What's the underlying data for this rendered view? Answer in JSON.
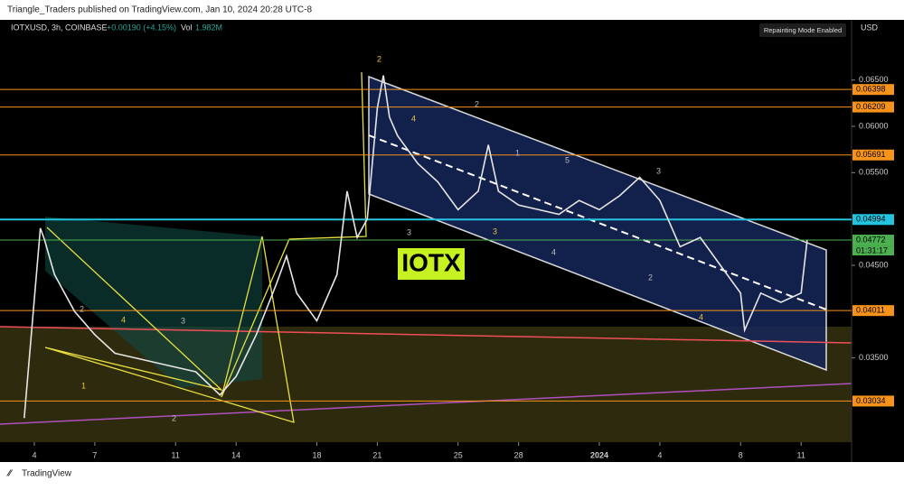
{
  "chart_data": {
    "type": "line",
    "title": "Triangle_Traders published on TradingView.com, Jan 10, 2024 20:28 UTC-8",
    "symbol": "IOTXUSD, 3h, COINBASE",
    "change": "+0.00190 (+4.15%)",
    "volume_label": "Vol",
    "volume": "1.982M",
    "mode": "Repainting Mode Enabled",
    "currency": "USD",
    "annotation": "IOTX",
    "countdown": "01:31:17",
    "brand": "TradingView",
    "wave_labels": [
      "2",
      "2",
      "3",
      "4",
      "5",
      "1",
      "3",
      "4",
      "2",
      "4",
      "3",
      "2",
      "4",
      "3",
      "2",
      "1"
    ],
    "series": [
      {
        "name": "IOTXUSD",
        "color": "#e6e6e6",
        "x": [
          -0.5,
          0.3,
          0.5,
          1,
          2,
          3,
          4,
          5,
          6,
          7,
          8,
          9.2,
          10,
          11,
          12,
          12.5,
          13,
          14,
          15,
          15.5,
          16,
          16.5,
          17,
          17.3,
          17.6,
          18,
          19,
          20,
          21,
          22,
          22.5,
          23,
          24,
          25,
          26,
          27,
          28,
          29,
          30,
          31,
          32,
          33,
          34,
          35,
          35.2,
          36,
          37,
          38,
          38.3
        ],
        "values": [
          0.0285,
          0.049,
          0.0478,
          0.044,
          0.04,
          0.0375,
          0.0355,
          0.035,
          0.0345,
          0.034,
          0.0335,
          0.031,
          0.033,
          0.0375,
          0.043,
          0.046,
          0.042,
          0.039,
          0.044,
          0.053,
          0.048,
          0.05,
          0.062,
          0.0655,
          0.061,
          0.059,
          0.056,
          0.054,
          0.051,
          0.053,
          0.058,
          0.053,
          0.0515,
          0.051,
          0.0505,
          0.052,
          0.051,
          0.0525,
          0.0545,
          0.052,
          0.047,
          0.048,
          0.045,
          0.042,
          0.038,
          0.042,
          0.041,
          0.042,
          0.0477
        ]
      }
    ],
    "levels": [
      {
        "value": 0.06398,
        "color": "#f7931a"
      },
      {
        "value": 0.06209,
        "color": "#f7931a"
      },
      {
        "value": 0.05691,
        "color": "#f7931a"
      },
      {
        "value": 0.04994,
        "color": "#22c4e0"
      },
      {
        "value": 0.04772,
        "color": "#4caf50"
      },
      {
        "value": 0.04011,
        "color": "#f7931a"
      },
      {
        "value": 0.03034,
        "color": "#f7931a"
      }
    ],
    "xlim": [
      -1.7,
      40.5
    ],
    "xticks": [
      {
        "value": 0,
        "label": "4"
      },
      {
        "value": 3,
        "label": "7"
      },
      {
        "value": 7,
        "label": "11"
      },
      {
        "value": 10,
        "label": "14"
      },
      {
        "value": 14,
        "label": "18"
      },
      {
        "value": 17,
        "label": "21"
      },
      {
        "value": 21,
        "label": "25"
      },
      {
        "value": 24,
        "label": "28"
      },
      {
        "value": 28,
        "label": "2024"
      },
      {
        "value": 31,
        "label": "4"
      },
      {
        "value": 35,
        "label": "8"
      },
      {
        "value": 38,
        "label": "11"
      }
    ],
    "ylim": [
      0.0259,
      0.0715
    ],
    "yticks": [
      {
        "value": 0.065,
        "label": "0.06500"
      },
      {
        "value": 0.06,
        "label": "0.06000"
      },
      {
        "value": 0.055,
        "label": "0.05500"
      },
      {
        "value": 0.045,
        "label": "0.04500"
      },
      {
        "value": 0.035,
        "label": "0.03500"
      }
    ]
  }
}
